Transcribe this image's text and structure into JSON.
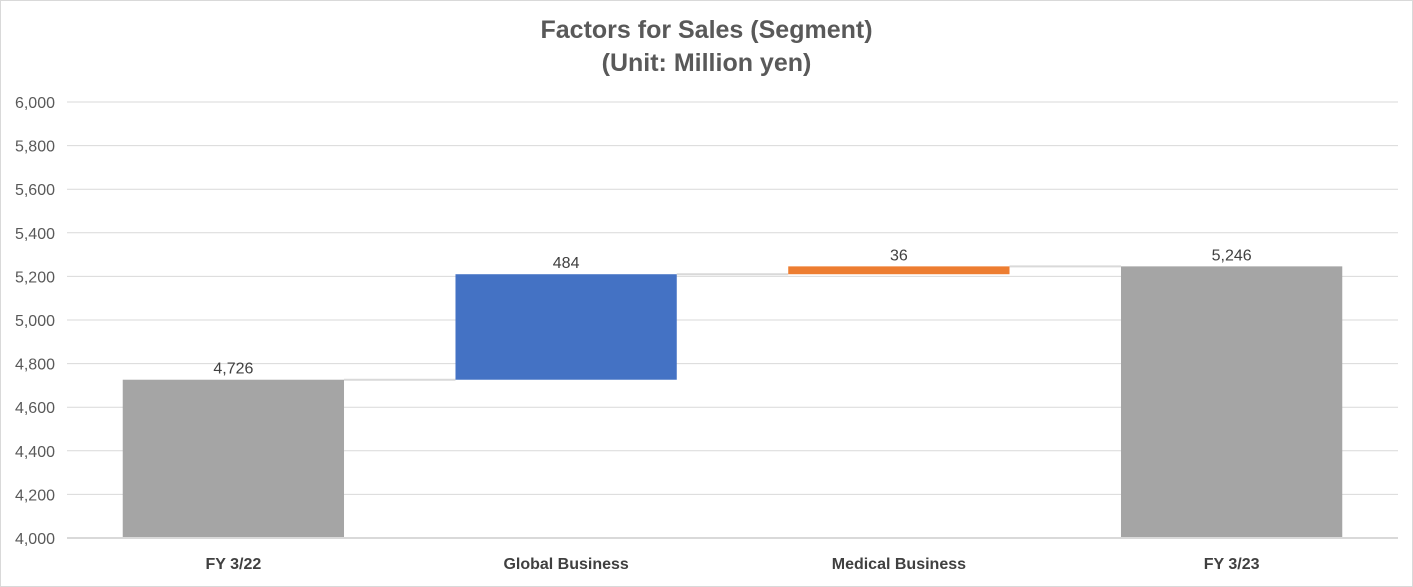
{
  "chart_data": {
    "type": "bar",
    "subtype": "waterfall",
    "title": "Factors for Sales (Segment)",
    "subtitle": "(Unit: Million yen)",
    "xlabel": "",
    "ylabel": "",
    "ylim": [
      4000,
      6000
    ],
    "y_ticks": [
      4000,
      4200,
      4400,
      4600,
      4800,
      5000,
      5200,
      5400,
      5600,
      5800,
      6000
    ],
    "y_tick_labels": [
      "4,000",
      "4,200",
      "4,400",
      "4,600",
      "4,800",
      "5,000",
      "5,200",
      "5,400",
      "5,600",
      "5,800",
      "6,000"
    ],
    "grid": true,
    "legend": "none",
    "categories": [
      "FY 3/22",
      "Global Business",
      "Medical Business",
      "FY 3/23"
    ],
    "bars": [
      {
        "kind": "total",
        "start": 4000,
        "end": 4726,
        "label": "4,726",
        "color": "#a5a5a5"
      },
      {
        "kind": "increase",
        "start": 4726,
        "end": 5210,
        "label": "484",
        "color": "#4472c4"
      },
      {
        "kind": "increase",
        "start": 5210,
        "end": 5246,
        "label": "36",
        "color": "#ed7d31"
      },
      {
        "kind": "total",
        "start": 4000,
        "end": 5246,
        "label": "5,246",
        "color": "#a5a5a5"
      }
    ]
  }
}
